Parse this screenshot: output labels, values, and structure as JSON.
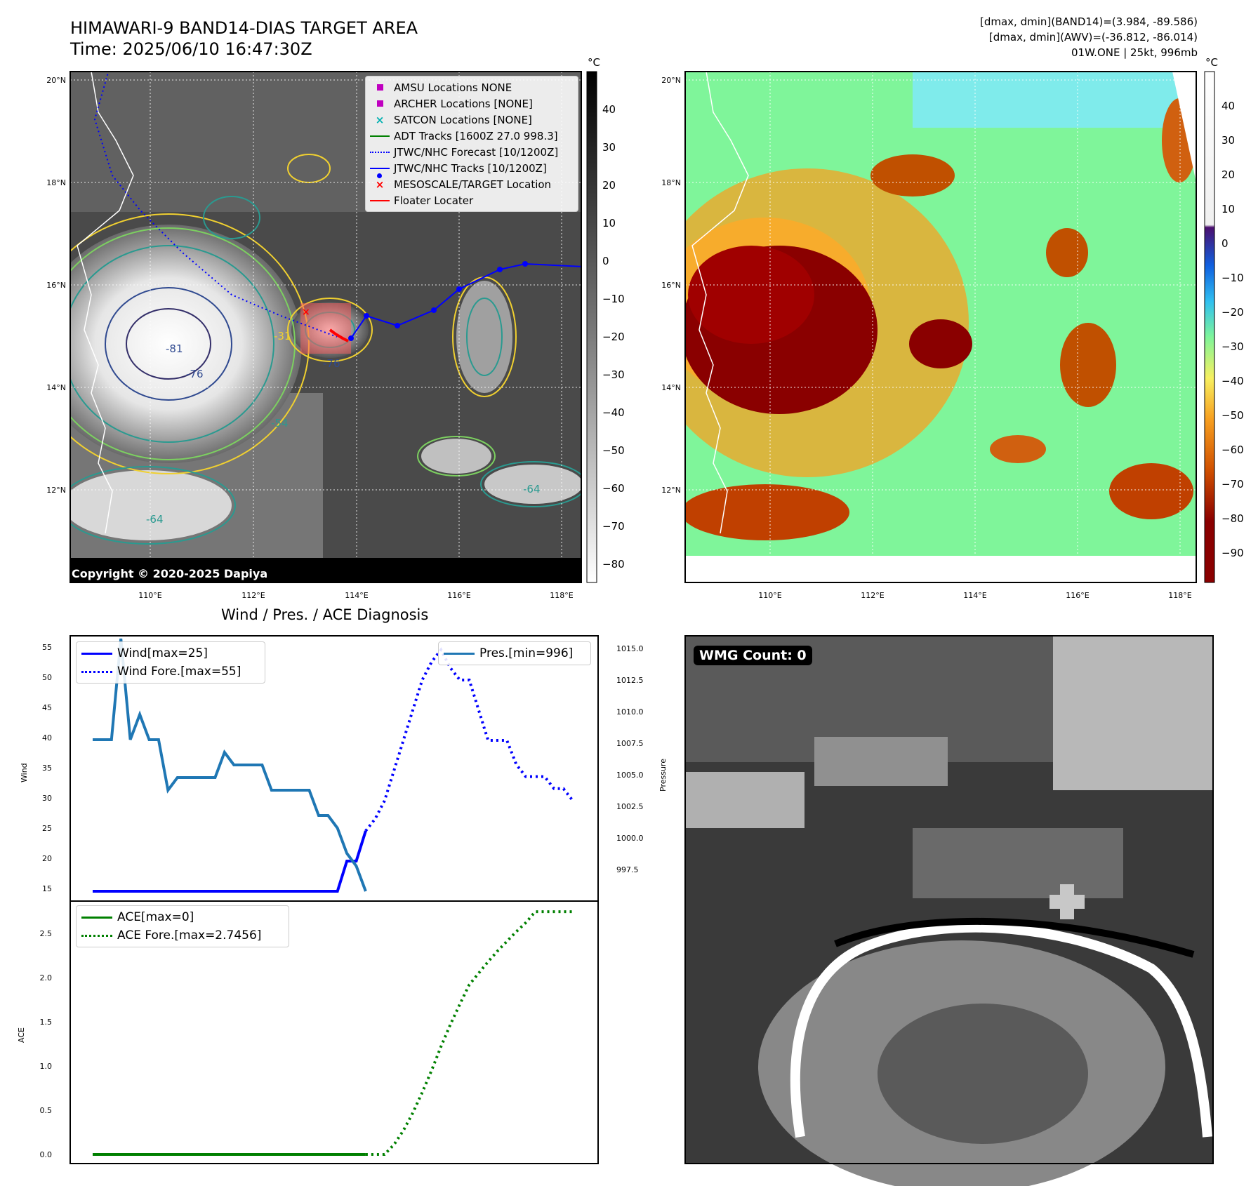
{
  "header": {
    "title": "HIMAWARI-9 BAND14-DIAS TARGET AREA",
    "time": "Time: 2025/06/10 16:47:30Z",
    "info_line1": "[dmax, dmin](BAND14)=(3.984, -89.586)",
    "info_line2": "[dmax, dmin](AWV)=(-36.812, -86.014)",
    "info_line3": "01W.ONE | 25kt, 996mb"
  },
  "map": {
    "lat_labels": [
      "20°N",
      "18°N",
      "16°N",
      "14°N",
      "12°N"
    ],
    "lon_labels": [
      "110°E",
      "112°E",
      "114°E",
      "116°E",
      "118°E"
    ],
    "copyright": "Copyright © 2020-2025 Dapiya",
    "contour_labels": [
      "-31",
      "-54",
      "-64",
      "-76",
      "-81"
    ],
    "legend": [
      {
        "label": "AMSU Locations NONE",
        "marker": "square",
        "color": "#c000c0"
      },
      {
        "label": "ARCHER Locations [NONE]",
        "marker": "square",
        "color": "#c000c0"
      },
      {
        "label": "SATCON Locations [NONE]",
        "marker": "x",
        "color": "#00b0b0"
      },
      {
        "label": "ADT Tracks [1600Z 27.0 998.3]",
        "marker": "line",
        "color": "#008000"
      },
      {
        "label": "JTWC/NHC Forecast [10/1200Z]",
        "marker": "dotted",
        "color": "#0000ff"
      },
      {
        "label": "JTWC/NHC Tracks [10/1200Z]",
        "marker": "line-dot",
        "color": "#0000ff"
      },
      {
        "label": "MESOSCALE/TARGET Location",
        "marker": "x",
        "color": "#ff0000"
      },
      {
        "label": "Floater Locater",
        "marker": "line",
        "color": "#ff0000"
      }
    ]
  },
  "colorbar_gray": {
    "unit": "°C",
    "ticks": [
      "40",
      "30",
      "20",
      "10",
      "0",
      "−10",
      "−20",
      "−30",
      "−40",
      "−50",
      "−60",
      "−70",
      "−80"
    ]
  },
  "colorbar_color": {
    "unit": "°C",
    "ticks": [
      "40",
      "30",
      "20",
      "10",
      "0",
      "−10",
      "−20",
      "−30",
      "−40",
      "−50",
      "−60",
      "−70",
      "−80",
      "−90"
    ]
  },
  "diagnosis": {
    "title": "Wind / Pres. / ACE Diagnosis",
    "wind_ylabel": "Wind",
    "pres_ylabel": "Pressure",
    "ace_ylabel": "ACE",
    "wind_ticks": [
      "55",
      "50",
      "45",
      "40",
      "35",
      "30",
      "25",
      "20",
      "15"
    ],
    "pres_ticks": [
      "1015.0",
      "1012.5",
      "1010.0",
      "1007.5",
      "1005.0",
      "1002.5",
      "1000.0",
      "997.5"
    ],
    "ace_ticks": [
      "2.5",
      "2.0",
      "1.5",
      "1.0",
      "0.5",
      "0.0"
    ],
    "legend_wind": "Wind[max=25]",
    "legend_wind_fore": "Wind Fore.[max=55]",
    "legend_pres": "Pres.[min=996]",
    "legend_ace": "ACE[max=0]",
    "legend_ace_fore": "ACE Fore.[max=2.7456]"
  },
  "wmg": {
    "label": "WMG Count: 0"
  },
  "chart_data": [
    {
      "type": "line",
      "title": "Wind / Pres. / ACE Diagnosis",
      "ylabel": "Wind",
      "ylim": [
        14,
        56
      ],
      "y2label": "Pressure",
      "y2lim": [
        996,
        1016
      ],
      "x": [
        0,
        1,
        2,
        3,
        4,
        5,
        6,
        7,
        8,
        9,
        10,
        11,
        12,
        13,
        14,
        15,
        16,
        17,
        18,
        19,
        20,
        21,
        22,
        23,
        24,
        25,
        26,
        27,
        28,
        29,
        30,
        31,
        32,
        33,
        34,
        35,
        36,
        37,
        38,
        39,
        40,
        41,
        42,
        43,
        44,
        45,
        46,
        47,
        48,
        49,
        50,
        51
      ],
      "series": [
        {
          "name": "Wind[max=25]",
          "color": "#0000ff",
          "style": "solid",
          "x": [
            0,
            1,
            2,
            3,
            4,
            5,
            6,
            7,
            8,
            9,
            10,
            11,
            12,
            13,
            14,
            15,
            16,
            17,
            18,
            19,
            20,
            21,
            22,
            23,
            24,
            25,
            26,
            27,
            28,
            29
          ],
          "values": [
            15,
            15,
            15,
            15,
            15,
            15,
            15,
            15,
            15,
            15,
            15,
            15,
            15,
            15,
            15,
            15,
            15,
            15,
            15,
            15,
            15,
            15,
            15,
            15,
            15,
            15,
            15,
            20,
            20,
            25
          ]
        },
        {
          "name": "Wind Fore.[max=55]",
          "color": "#0000ff",
          "style": "dotted",
          "x": [
            29,
            30,
            31,
            32,
            33,
            34,
            35,
            36,
            37,
            38,
            39,
            40,
            41,
            42,
            43,
            44,
            45,
            46,
            47,
            48,
            49,
            50,
            51
          ],
          "values": [
            25,
            27,
            30,
            35,
            40,
            45,
            50,
            53,
            55,
            52,
            50,
            50,
            45,
            40,
            40,
            40,
            36,
            34,
            34,
            34,
            32,
            32,
            30
          ]
        },
        {
          "name": "Pres.[min=996]",
          "color": "#1f77b4",
          "style": "solid",
          "axis": "right",
          "x": [
            0,
            1,
            2,
            3,
            4,
            5,
            6,
            7,
            8,
            9,
            10,
            11,
            12,
            13,
            14,
            15,
            16,
            17,
            18,
            19,
            20,
            21,
            22,
            23,
            24,
            25,
            26,
            27,
            28,
            29
          ],
          "values": [
            1008,
            1008,
            1008,
            1016,
            1008,
            1010,
            1008,
            1008,
            1004,
            1005,
            1005,
            1005,
            1005,
            1005,
            1007,
            1006,
            1006,
            1006,
            1006,
            1004,
            1004,
            1004,
            1004,
            1004,
            1002,
            1002,
            1001,
            999,
            998,
            996
          ]
        }
      ]
    },
    {
      "type": "line",
      "ylabel": "ACE",
      "ylim": [
        -0.05,
        2.85
      ],
      "x": [
        0,
        1,
        2,
        3,
        4,
        5,
        6,
        7,
        8,
        9,
        10,
        11,
        12,
        13,
        14,
        15,
        16,
        17,
        18,
        19,
        20,
        21,
        22,
        23,
        24,
        25,
        26,
        27,
        28,
        29,
        30,
        31,
        32,
        33,
        34,
        35,
        36,
        37,
        38,
        39,
        40,
        41,
        42,
        43,
        44,
        45,
        46,
        47,
        48,
        49,
        50,
        51
      ],
      "series": [
        {
          "name": "ACE[max=0]",
          "color": "#008000",
          "style": "solid",
          "x": [
            0,
            29
          ],
          "values": [
            0,
            0
          ]
        },
        {
          "name": "ACE Fore.[max=2.7456]",
          "color": "#008000",
          "style": "dotted",
          "x": [
            29,
            30,
            31,
            32,
            33,
            34,
            35,
            36,
            37,
            38,
            39,
            40,
            41,
            42,
            43,
            44,
            45,
            46,
            47,
            48,
            49,
            50,
            51
          ],
          "values": [
            0,
            0,
            0,
            0.11,
            0.27,
            0.47,
            0.7,
            0.95,
            1.22,
            1.47,
            1.7,
            1.92,
            2.05,
            2.18,
            2.3,
            2.41,
            2.52,
            2.62,
            2.7456,
            2.7456,
            2.7456,
            2.7456,
            2.7456
          ]
        },
        {
          "name": "",
          "color": "#008000",
          "style": "dotted",
          "x": [],
          "values": []
        }
      ]
    }
  ]
}
